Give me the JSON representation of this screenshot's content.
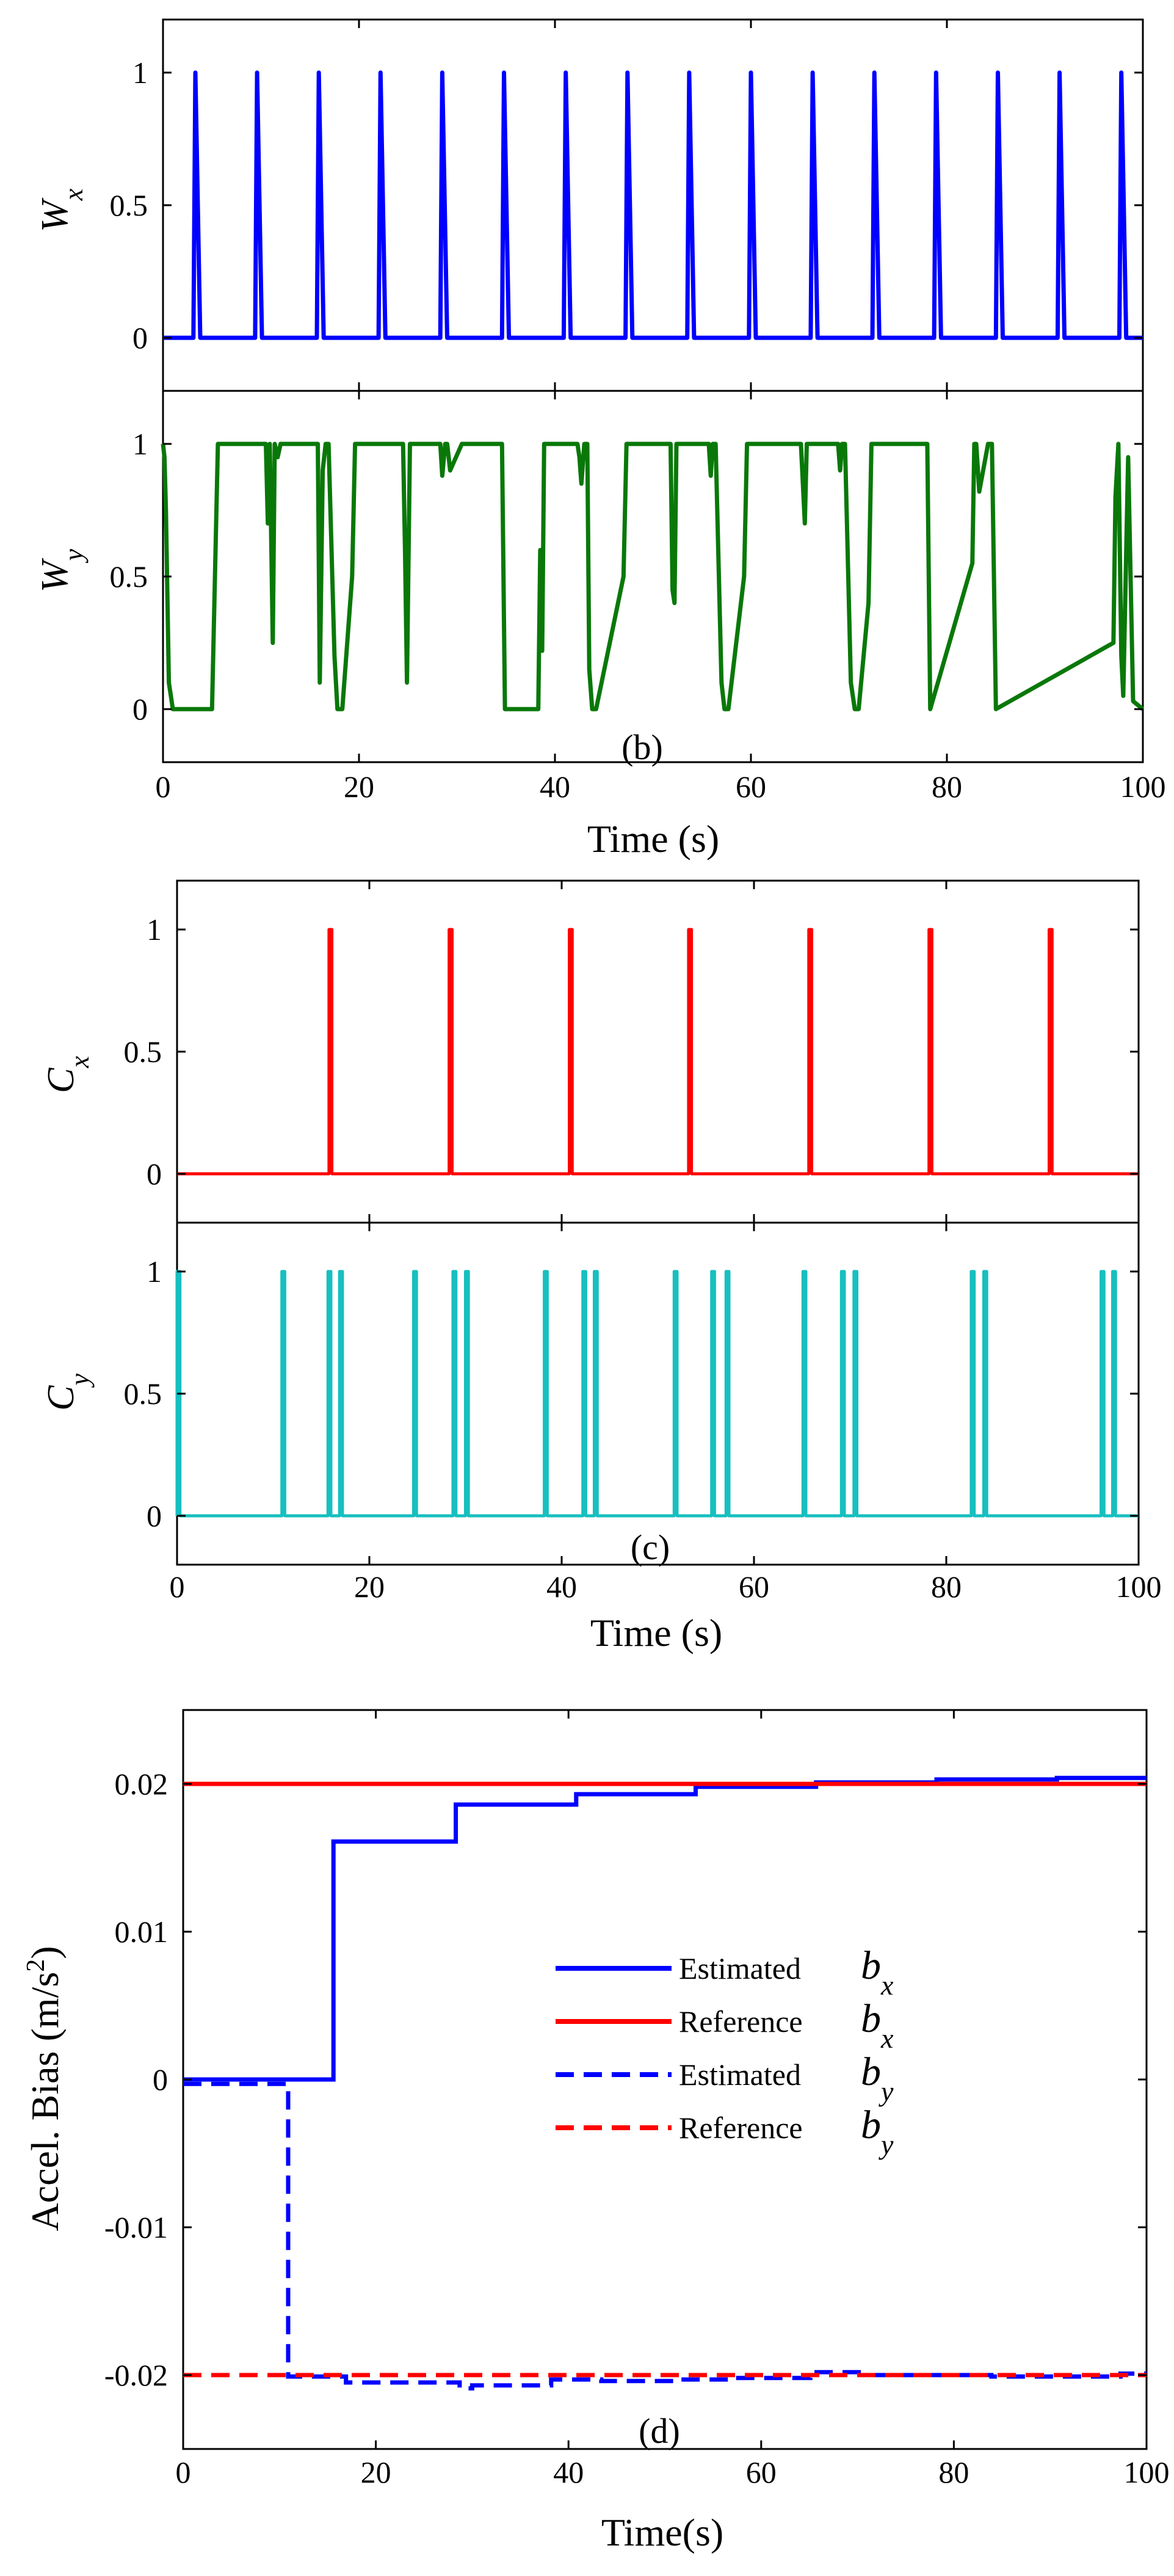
{
  "chart_data": [
    {
      "type": "line",
      "panel_label": "(b)",
      "xlabel": "Time (s)",
      "xlim": [
        0,
        100
      ],
      "xticks": [
        "0",
        "20",
        "40",
        "60",
        "80",
        "100"
      ],
      "subplots": [
        {
          "ylabel": "W",
          "ylabel_sub": "x",
          "color": "#0000ff",
          "ylim": [
            -0.2,
            1.2
          ],
          "yticks": [
            "0",
            "0.5",
            "1"
          ],
          "pulse_width_s": 0.7,
          "pulse_times": [
            3.1,
            9.4,
            15.7,
            22.0,
            28.3,
            34.6,
            40.9,
            47.2,
            53.5,
            59.8,
            66.1,
            72.4,
            78.7,
            85.0,
            91.3,
            97.6
          ],
          "series": [
            {
              "name": "Wx",
              "x": [
                0,
                3.1,
                3.3,
                3.8,
                9.4,
                9.6,
                10.1,
                15.7,
                15.9,
                16.4,
                22.0,
                22.2,
                22.7,
                28.3,
                28.5,
                29.0,
                34.6,
                34.8,
                35.3,
                40.9,
                41.1,
                41.6,
                47.2,
                47.4,
                47.9,
                53.5,
                53.7,
                54.2,
                59.8,
                60.0,
                60.5,
                66.1,
                66.3,
                66.8,
                72.4,
                72.6,
                73.1,
                78.7,
                78.9,
                79.4,
                85.0,
                85.2,
                85.7,
                91.3,
                91.5,
                92.0,
                97.6,
                97.8,
                98.3,
                100
              ],
              "y": [
                0,
                0,
                1,
                0,
                0,
                1,
                0,
                0,
                1,
                0,
                0,
                1,
                0,
                0,
                1,
                0,
                0,
                1,
                0,
                0,
                1,
                0,
                0,
                1,
                0,
                0,
                1,
                0,
                0,
                1,
                0,
                0,
                1,
                0,
                0,
                1,
                0,
                0,
                1,
                0,
                0,
                1,
                0,
                0,
                1,
                0,
                0,
                1,
                0,
                0
              ]
            }
          ]
        },
        {
          "ylabel": "W",
          "ylabel_sub": "y",
          "color": "#097809",
          "ylim": [
            -0.2,
            1.2
          ],
          "yticks": [
            "0",
            "0.5",
            "1"
          ],
          "series": [
            {
              "name": "Wy",
              "x": [
                0,
                0.15,
                0.3,
                0.6,
                1.0,
                5.0,
                5.3,
                5.6,
                10.5,
                10.7,
                10.9,
                11.2,
                11.4,
                11.7,
                12.0,
                15.8,
                16.0,
                16.3,
                16.6,
                16.9,
                17.5,
                17.8,
                18.3,
                19.3,
                19.6,
                24.5,
                24.7,
                24.9,
                25.2,
                28.3,
                28.5,
                28.8,
                29.0,
                29.3,
                30.5,
                30.8,
                34.6,
                34.9,
                38.3,
                38.5,
                38.7,
                38.9,
                42.3,
                42.5,
                42.7,
                43.0,
                43.3,
                43.5,
                43.8,
                44.2,
                47.0,
                47.3,
                51.8,
                52.0,
                52.2,
                52.4,
                55.7,
                55.9,
                56.1,
                56.4,
                57.0,
                57.3,
                57.7,
                59.3,
                59.6,
                65.1,
                65.3,
                65.5,
                65.7,
                68.9,
                69.1,
                69.3,
                69.6,
                70.2,
                70.6,
                71.0,
                72.0,
                72.3,
                78.0,
                78.3,
                82.6,
                82.8,
                83.0,
                83.3,
                84.2,
                84.6,
                85.0,
                97.0,
                97.2,
                97.5,
                97.8,
                98.0,
                98.5,
                99.0,
                100
              ],
              "y": [
                1,
                0.95,
                0.75,
                0.1,
                0,
                0,
                0.5,
                1,
                1,
                0.7,
                1,
                0.25,
                1,
                0.95,
                1,
                1,
                0.1,
                0.9,
                1,
                1,
                0.2,
                0,
                0,
                0.5,
                1,
                1,
                0.6,
                0.1,
                1,
                1,
                0.88,
                1,
                1,
                0.9,
                1,
                1,
                1,
                0,
                0,
                0.6,
                0.22,
                1,
                1,
                0.95,
                0.85,
                1,
                1,
                0.15,
                0,
                0,
                0.5,
                1,
                1,
                0.45,
                0.4,
                1,
                1,
                0.88,
                1,
                1,
                0.1,
                0,
                0,
                0.5,
                1,
                1,
                0.85,
                0.7,
                1,
                1,
                0.9,
                1,
                1,
                0.1,
                0,
                0,
                0.4,
                1,
                1,
                0,
                0.55,
                1,
                1,
                0.82,
                1,
                1,
                0,
                0.25,
                0.8,
                1,
                0.2,
                0.05,
                0.95,
                0.03,
                0
              ]
            }
          ]
        }
      ]
    },
    {
      "type": "line",
      "panel_label": "(c)",
      "xlabel": "Time (s)",
      "xlim": [
        0,
        100
      ],
      "xticks": [
        "0",
        "20",
        "40",
        "60",
        "80",
        "100"
      ],
      "subplots": [
        {
          "ylabel": "C",
          "ylabel_sub": "x",
          "color": "#ff0000",
          "ylim": [
            -0.2,
            1.2
          ],
          "yticks": [
            "0",
            "0.5",
            "1"
          ],
          "pulse_width_s": 0.3,
          "pulse_times": [
            15.8,
            28.3,
            40.8,
            53.2,
            65.7,
            78.2,
            90.7
          ]
        },
        {
          "ylabel": "C",
          "ylabel_sub": "y",
          "color": "#17bfbf",
          "ylim": [
            -0.2,
            1.2
          ],
          "yticks": [
            "0",
            "0.5",
            "1"
          ],
          "pulse_width_s": 0.3,
          "pulse_times": [
            0.0,
            10.9,
            15.7,
            16.9,
            24.6,
            28.7,
            30.0,
            38.2,
            42.2,
            43.4,
            51.7,
            55.6,
            57.1,
            65.1,
            69.1,
            70.4,
            82.6,
            83.9,
            96.1,
            97.3
          ]
        }
      ]
    },
    {
      "type": "line",
      "panel_label": "(d)",
      "xlabel": "Time(s)",
      "ylabel": "Accel. Bias (m/s",
      "ylabel_sup": "2",
      "ylabel_end": ")",
      "xlim": [
        0,
        100
      ],
      "ylim": [
        -0.025,
        0.025
      ],
      "xticks": [
        "0",
        "20",
        "40",
        "60",
        "80",
        "100"
      ],
      "yticks": [
        "-0.02",
        "-0.01",
        "0",
        "0.01",
        "0.02"
      ],
      "ytick_values": [
        -0.02,
        -0.01,
        0,
        0.01,
        0.02
      ],
      "legend_placement": "center",
      "series": [
        {
          "name": "Estimated",
          "symbol": "b",
          "sub": "x",
          "color": "#0000ff",
          "dash": false,
          "x": [
            0,
            15.6,
            15.6,
            28.3,
            28.3,
            40.8,
            40.8,
            53.2,
            53.2,
            65.7,
            65.7,
            78.2,
            78.2,
            90.7,
            90.7,
            100
          ],
          "y": [
            0,
            0,
            0.0161,
            0.0161,
            0.0186,
            0.0186,
            0.0193,
            0.0193,
            0.0198,
            0.0198,
            0.0201,
            0.0201,
            0.0203,
            0.0203,
            0.0204,
            0.0204
          ]
        },
        {
          "name": "Reference",
          "symbol": "b",
          "sub": "x",
          "color": "#ff0000",
          "dash": false,
          "x": [
            0,
            100
          ],
          "y": [
            0.02,
            0.02
          ]
        },
        {
          "name": "Estimated",
          "symbol": "b",
          "sub": "y",
          "color": "#0000ff",
          "dash": true,
          "x": [
            0,
            10.9,
            10.9,
            16.9,
            16.9,
            28.7,
            28.7,
            30.0,
            30.0,
            38.2,
            38.2,
            43.4,
            43.4,
            51.7,
            51.7,
            57.1,
            57.1,
            65.1,
            65.1,
            70.4,
            70.4,
            83.9,
            83.9,
            97.3,
            97.3,
            100
          ],
          "y": [
            -0.0003,
            -0.0003,
            -0.0201,
            -0.0201,
            -0.0205,
            -0.0205,
            -0.0209,
            -0.0209,
            -0.0207,
            -0.0207,
            -0.0203,
            -0.0203,
            -0.0204,
            -0.0204,
            -0.0203,
            -0.0203,
            -0.0202,
            -0.0202,
            -0.0198,
            -0.0198,
            -0.02,
            -0.02,
            -0.0201,
            -0.0201,
            -0.0199,
            -0.0199
          ]
        },
        {
          "name": "Reference",
          "symbol": "b",
          "sub": "y",
          "color": "#ff0000",
          "dash": true,
          "x": [
            0,
            100
          ],
          "y": [
            -0.02,
            -0.02
          ]
        }
      ]
    }
  ]
}
